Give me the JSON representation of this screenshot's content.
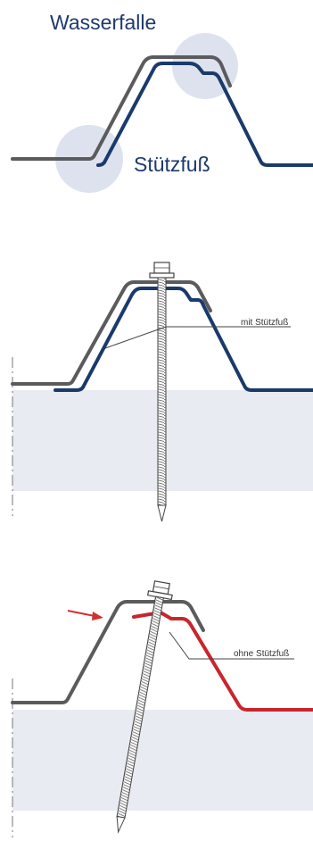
{
  "labels": {
    "wasserfalle": "Wasserfalle",
    "stuetzfuss": "Stützfuß",
    "mit_stuetzfuss": "mit Stützfuß",
    "ohne_stuetzfuss": "ohne Stützfuß"
  },
  "colors": {
    "navy_profile": "#1a3a6b",
    "gray_profile": "#5b5b5e",
    "red_profile": "#c9252c",
    "highlight_circle": "#dde2ee",
    "insulation_fill": "#e8ebf2",
    "arrow": "#d32f2f"
  },
  "icons": {
    "screw": "screw-icon",
    "arrow": "arrow-icon"
  }
}
